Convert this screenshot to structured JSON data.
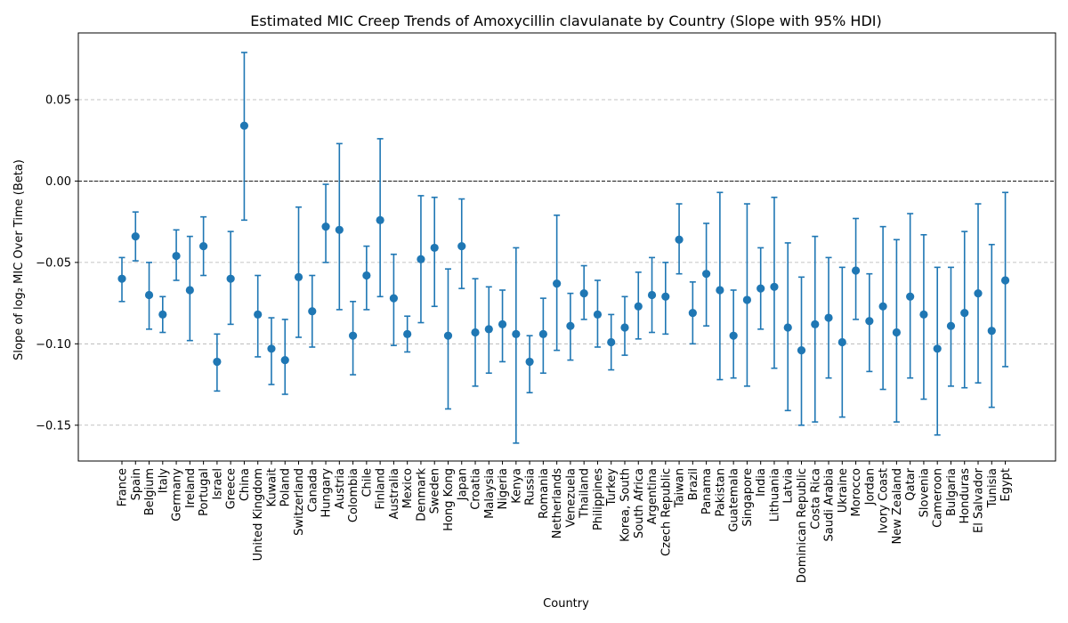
{
  "chart_data": {
    "type": "scatter",
    "title": "Estimated MIC Creep Trends of Amoxycillin clavulanate by Country (Slope with 95% HDI)",
    "xlabel": "Country",
    "ylabel": "Slope of log₂ MIC Over Time (Beta)",
    "ylim": [
      -0.172,
      0.091
    ],
    "yticks": [
      -0.15,
      -0.1,
      -0.05,
      0.0,
      0.05
    ],
    "ytick_labels": [
      "−0.15",
      "−0.10",
      "−0.05",
      "0.00",
      "0.05"
    ],
    "grid": "horizontal dashed",
    "reference_line": 0.0,
    "marker_color": "#1f77b4",
    "categories": [
      "France",
      "Spain",
      "Belgium",
      "Italy",
      "Germany",
      "Ireland",
      "Portugal",
      "Israel",
      "Greece",
      "China",
      "United Kingdom",
      "Kuwait",
      "Poland",
      "Switzerland",
      "Canada",
      "Hungary",
      "Austria",
      "Colombia",
      "Chile",
      "Finland",
      "Australia",
      "Mexico",
      "Denmark",
      "Sweden",
      "Hong Kong",
      "Japan",
      "Croatia",
      "Malaysia",
      "Nigeria",
      "Kenya",
      "Russia",
      "Romania",
      "Netherlands",
      "Venezuela",
      "Thailand",
      "Philippines",
      "Turkey",
      "Korea, South",
      "South Africa",
      "Argentina",
      "Czech Republic",
      "Taiwan",
      "Brazil",
      "Panama",
      "Pakistan",
      "Guatemala",
      "Singapore",
      "India",
      "Lithuania",
      "Latvia",
      "Dominican Republic",
      "Costa Rica",
      "Saudi Arabia",
      "Ukraine",
      "Morocco",
      "Jordan",
      "Ivory Coast",
      "New Zealand",
      "Qatar",
      "Slovenia",
      "Cameroon",
      "Bulgaria",
      "Honduras",
      "El Salvador",
      "Tunisia",
      "Egypt"
    ],
    "values": [
      -0.06,
      -0.034,
      -0.07,
      -0.082,
      -0.046,
      -0.067,
      -0.04,
      -0.111,
      -0.06,
      0.034,
      -0.082,
      -0.103,
      -0.11,
      -0.059,
      -0.08,
      -0.028,
      -0.03,
      -0.095,
      -0.058,
      -0.024,
      -0.072,
      -0.094,
      -0.048,
      -0.041,
      -0.095,
      -0.04,
      -0.093,
      -0.091,
      -0.088,
      -0.094,
      -0.111,
      -0.094,
      -0.063,
      -0.089,
      -0.069,
      -0.082,
      -0.099,
      -0.09,
      -0.077,
      -0.07,
      -0.071,
      -0.036,
      -0.081,
      -0.057,
      -0.067,
      -0.095,
      -0.073,
      -0.066,
      -0.065,
      -0.09,
      -0.104,
      -0.088,
      -0.084,
      -0.099,
      -0.055,
      -0.086,
      -0.077,
      -0.093,
      -0.071,
      -0.082,
      -0.103,
      -0.089,
      -0.081,
      -0.069,
      -0.092,
      -0.061
    ],
    "lower": [
      -0.074,
      -0.049,
      -0.091,
      -0.093,
      -0.061,
      -0.098,
      -0.058,
      -0.129,
      -0.088,
      -0.024,
      -0.108,
      -0.125,
      -0.131,
      -0.096,
      -0.102,
      -0.05,
      -0.079,
      -0.119,
      -0.079,
      -0.071,
      -0.101,
      -0.105,
      -0.087,
      -0.077,
      -0.14,
      -0.066,
      -0.126,
      -0.118,
      -0.111,
      -0.161,
      -0.13,
      -0.118,
      -0.104,
      -0.11,
      -0.085,
      -0.102,
      -0.116,
      -0.107,
      -0.097,
      -0.093,
      -0.094,
      -0.057,
      -0.1,
      -0.089,
      -0.122,
      -0.121,
      -0.126,
      -0.091,
      -0.115,
      -0.141,
      -0.15,
      -0.148,
      -0.121,
      -0.145,
      -0.085,
      -0.117,
      -0.128,
      -0.148,
      -0.121,
      -0.134,
      -0.156,
      -0.126,
      -0.127,
      -0.124,
      -0.139,
      -0.114
    ],
    "upper": [
      -0.047,
      -0.019,
      -0.05,
      -0.071,
      -0.03,
      -0.034,
      -0.022,
      -0.094,
      -0.031,
      0.079,
      -0.058,
      -0.084,
      -0.085,
      -0.016,
      -0.058,
      -0.002,
      0.023,
      -0.074,
      -0.04,
      0.026,
      -0.045,
      -0.083,
      -0.009,
      -0.01,
      -0.054,
      -0.011,
      -0.06,
      -0.065,
      -0.067,
      -0.041,
      -0.095,
      -0.072,
      -0.021,
      -0.069,
      -0.052,
      -0.061,
      -0.082,
      -0.071,
      -0.056,
      -0.047,
      -0.05,
      -0.014,
      -0.062,
      -0.026,
      -0.007,
      -0.067,
      -0.014,
      -0.041,
      -0.01,
      -0.038,
      -0.059,
      -0.034,
      -0.047,
      -0.053,
      -0.023,
      -0.057,
      -0.028,
      -0.036,
      -0.02,
      -0.033,
      -0.053,
      -0.053,
      -0.031,
      -0.014,
      -0.039,
      -0.007
    ]
  }
}
